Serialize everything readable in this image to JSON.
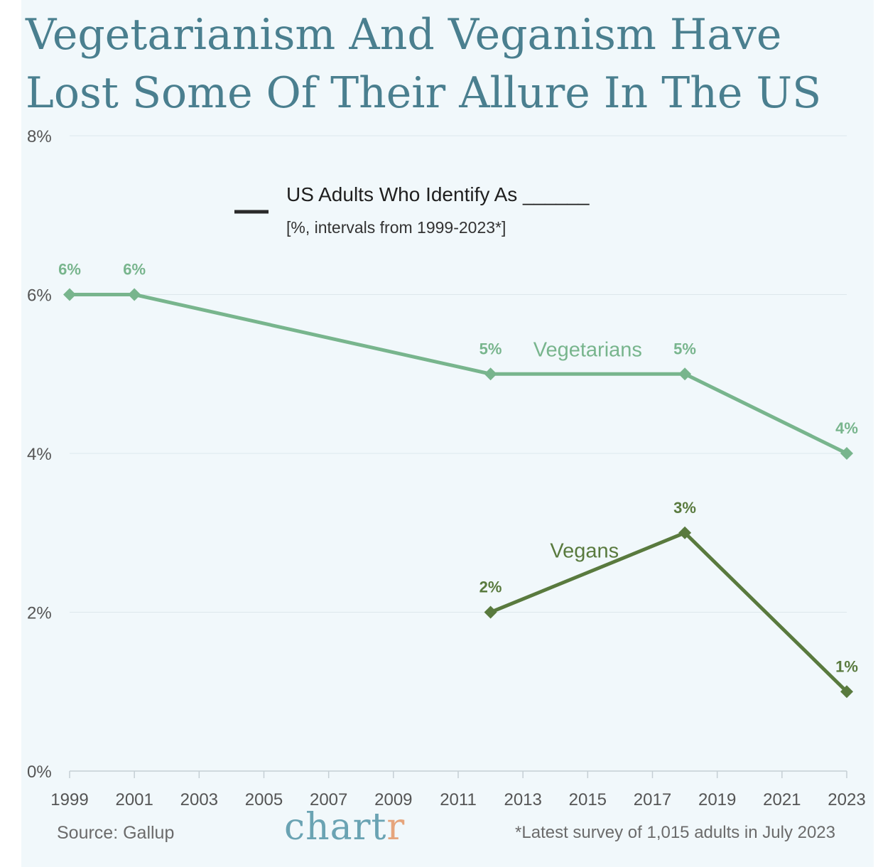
{
  "title_lines": [
    "Vegetarianism And Veganism Have",
    "Lost Some Of Their Allure In The US"
  ],
  "legend": {
    "title": "US Adults Who Identify As ______",
    "subtitle": "[%, intervals from 1999-2023*]"
  },
  "footer": {
    "source": "Source: Gallup",
    "brand_main": "chart",
    "brand_accent": "r",
    "note": "*Latest survey of 1,015 adults in July 2023"
  },
  "colors": {
    "vegetarians": "#78b58d",
    "vegans": "#597a3e",
    "title": "#4a7f8f",
    "grid": "#dde7ec",
    "axis": "#c5cfd4",
    "tick_text": "#555555"
  },
  "chart_data": {
    "type": "line",
    "title": "Vegetarianism And Veganism Have Lost Some Of Their Allure In The US",
    "xlabel": "",
    "ylabel": "",
    "xlim": [
      1999,
      2023
    ],
    "ylim": [
      0,
      8
    ],
    "x_ticks": [
      1999,
      2001,
      2003,
      2005,
      2007,
      2009,
      2011,
      2013,
      2015,
      2017,
      2019,
      2021,
      2023
    ],
    "y_ticks": [
      0,
      2,
      4,
      6,
      8
    ],
    "y_tick_labels": [
      "0%",
      "2%",
      "4%",
      "6%",
      "8%"
    ],
    "grid": true,
    "series": [
      {
        "name": "Vegetarians",
        "x": [
          1999,
          2001,
          2012,
          2018,
          2023
        ],
        "values": [
          6,
          6,
          5,
          5,
          4
        ],
        "labels": [
          "6%",
          "6%",
          "5%",
          "5%",
          "4%"
        ]
      },
      {
        "name": "Vegans",
        "x": [
          2012,
          2018,
          2023
        ],
        "values": [
          2,
          3,
          1
        ],
        "labels": [
          "2%",
          "3%",
          "1%"
        ]
      }
    ]
  }
}
